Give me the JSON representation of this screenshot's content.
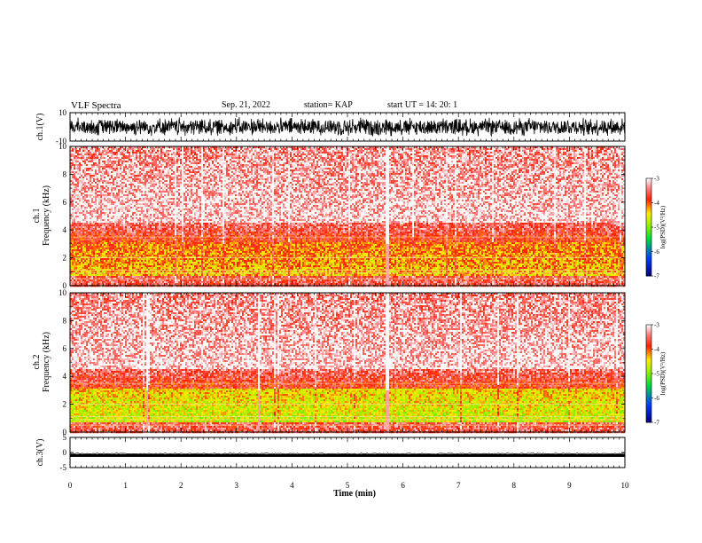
{
  "header": {
    "title": "VLF Spectra",
    "date": "Sep. 21, 2022",
    "station": "station= KAP",
    "start": "start  UT  =   14: 20: 1"
  },
  "chart_data": [
    {
      "type": "line",
      "panel": "ch1-waveform",
      "ylabel": "ch.1(V)",
      "ylim": [
        -10,
        10
      ],
      "y_ticks": [
        "10",
        "-10"
      ],
      "xlim": [
        0,
        10
      ],
      "signal": "dense noise waveform, approx. -7 to +7 V"
    },
    {
      "type": "heatmap",
      "panel": "ch1-spectrogram",
      "ylabel": "ch.1 Frequency (kHz)",
      "ylim": [
        0,
        10
      ],
      "y_ticks": [
        "0",
        "2",
        "4",
        "6",
        "8",
        "10"
      ],
      "xlim": [
        0,
        10
      ],
      "colorbar": {
        "label": "log(PSD)(V²/Hz)",
        "range": [
          -7,
          -3
        ],
        "ticks": [
          "-3",
          "-4",
          "-5",
          "-6",
          "-7"
        ]
      }
    },
    {
      "type": "heatmap",
      "panel": "ch2-spectrogram",
      "ylabel": "ch.2 Frequency (kHz)",
      "ylim": [
        0,
        10
      ],
      "y_ticks": [
        "0",
        "2",
        "4",
        "6",
        "8",
        "10"
      ],
      "xlim": [
        0,
        10
      ],
      "colorbar": {
        "label": "log(PSD)(V²/Hz)",
        "range": [
          -7,
          -3
        ],
        "ticks": [
          "-3",
          "-4",
          "-5",
          "-6",
          "-7"
        ]
      }
    },
    {
      "type": "line",
      "panel": "ch3-waveform",
      "ylabel": "ch.3(V)",
      "ylim": [
        -5,
        5
      ],
      "y_ticks": [
        "5",
        "0",
        "-5"
      ],
      "xlim": [
        0,
        10
      ],
      "signal": "near-constant band around -1 V"
    }
  ],
  "x_axis": {
    "label": "Time  (min)",
    "ticks": [
      "0",
      "1",
      "2",
      "3",
      "4",
      "5",
      "6",
      "7",
      "8",
      "9",
      "10"
    ]
  }
}
